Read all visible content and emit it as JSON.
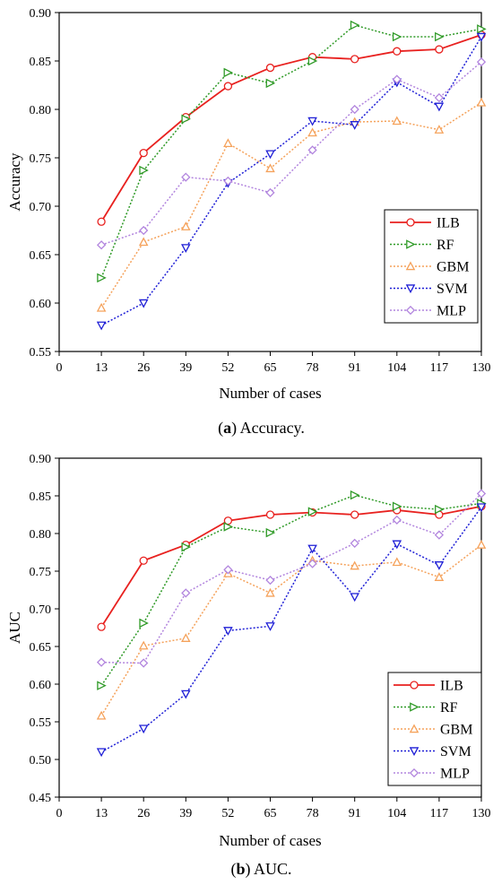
{
  "chart_data": [
    {
      "type": "line",
      "x": [
        13,
        26,
        39,
        52,
        65,
        78,
        91,
        104,
        117,
        130
      ],
      "xticks": [
        "0",
        "13",
        "26",
        "39",
        "52",
        "65",
        "78",
        "91",
        "104",
        "117",
        "130"
      ],
      "xlabel": "Number of cases",
      "ylabel": "Accuracy",
      "ylim": [
        0.55,
        0.9
      ],
      "yticks": [
        "0.55",
        "0.60",
        "0.65",
        "0.70",
        "0.75",
        "0.80",
        "0.85",
        "0.90"
      ],
      "caption_label": "a",
      "caption_text": "Accuracy.",
      "legend_position": "bottom-right",
      "series": [
        {
          "name": "ILB",
          "color": "#e8211f",
          "marker": "circle",
          "style": "solid",
          "values": [
            0.684,
            0.755,
            0.792,
            0.824,
            0.843,
            0.854,
            0.852,
            0.86,
            0.862,
            0.877
          ]
        },
        {
          "name": "RF",
          "color": "#2f9a27",
          "marker": "triangle-right",
          "style": "dotted",
          "values": [
            0.626,
            0.737,
            0.79,
            0.838,
            0.827,
            0.85,
            0.887,
            0.875,
            0.875,
            0.883
          ]
        },
        {
          "name": "GBM",
          "color": "#f5a25b",
          "marker": "triangle-up",
          "style": "dotted",
          "values": [
            0.595,
            0.663,
            0.679,
            0.765,
            0.739,
            0.776,
            0.787,
            0.788,
            0.779,
            0.807
          ]
        },
        {
          "name": "SVM",
          "color": "#1f1fd6",
          "marker": "triangle-down",
          "style": "dotted",
          "values": [
            0.577,
            0.6,
            0.657,
            0.724,
            0.754,
            0.788,
            0.784,
            0.828,
            0.803,
            0.875
          ]
        },
        {
          "name": "MLP",
          "color": "#b285de",
          "marker": "diamond",
          "style": "dotted",
          "values": [
            0.66,
            0.675,
            0.73,
            0.726,
            0.714,
            0.758,
            0.8,
            0.831,
            0.812,
            0.849
          ]
        }
      ]
    },
    {
      "type": "line",
      "x": [
        13,
        26,
        39,
        52,
        65,
        78,
        91,
        104,
        117,
        130
      ],
      "xticks": [
        "0",
        "13",
        "26",
        "39",
        "52",
        "65",
        "78",
        "91",
        "104",
        "117",
        "130"
      ],
      "xlabel": "Number of cases",
      "ylabel": "AUC",
      "ylim": [
        0.45,
        0.9
      ],
      "yticks": [
        "0.45",
        "0.50",
        "0.55",
        "0.60",
        "0.65",
        "0.70",
        "0.75",
        "0.80",
        "0.85",
        "0.90"
      ],
      "caption_label": "b",
      "caption_text": "AUC.",
      "legend_position": "bottom-right",
      "series": [
        {
          "name": "ILB",
          "color": "#e8211f",
          "marker": "circle",
          "style": "solid",
          "values": [
            0.676,
            0.764,
            0.785,
            0.817,
            0.825,
            0.828,
            0.825,
            0.831,
            0.825,
            0.836
          ]
        },
        {
          "name": "RF",
          "color": "#2f9a27",
          "marker": "triangle-right",
          "style": "dotted",
          "values": [
            0.598,
            0.681,
            0.782,
            0.809,
            0.801,
            0.829,
            0.851,
            0.836,
            0.832,
            0.84
          ]
        },
        {
          "name": "GBM",
          "color": "#f5a25b",
          "marker": "triangle-up",
          "style": "dotted",
          "values": [
            0.558,
            0.651,
            0.661,
            0.747,
            0.721,
            0.764,
            0.757,
            0.762,
            0.742,
            0.785
          ]
        },
        {
          "name": "SVM",
          "color": "#1f1fd6",
          "marker": "triangle-down",
          "style": "dotted",
          "values": [
            0.51,
            0.541,
            0.587,
            0.671,
            0.677,
            0.78,
            0.716,
            0.786,
            0.758,
            0.835
          ]
        },
        {
          "name": "MLP",
          "color": "#b285de",
          "marker": "diamond",
          "style": "dotted",
          "values": [
            0.629,
            0.628,
            0.721,
            0.752,
            0.738,
            0.76,
            0.787,
            0.818,
            0.798,
            0.853
          ]
        }
      ]
    }
  ]
}
